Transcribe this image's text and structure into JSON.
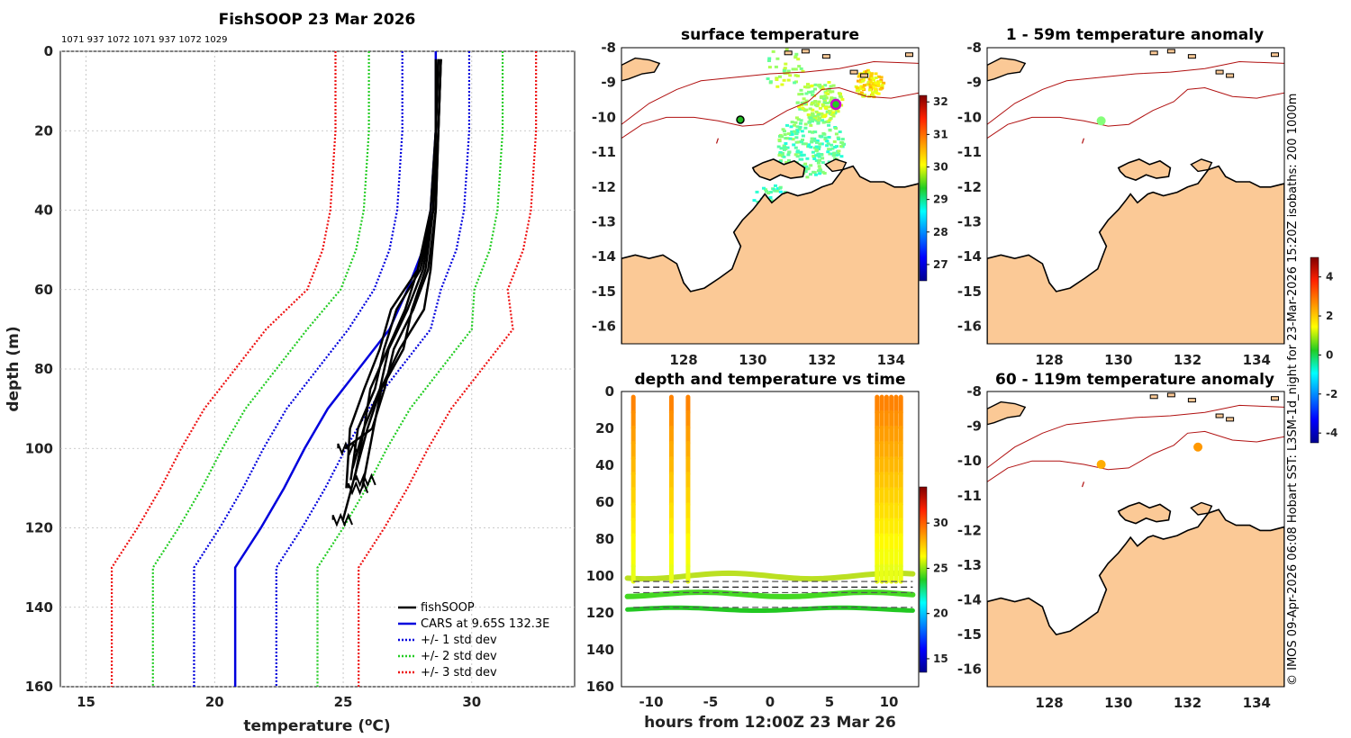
{
  "chart_data": [
    {
      "type": "line",
      "title": "FishSOOP 23 Mar 2026",
      "top_labels": "1071 937 1072 1071 937 1072 1029",
      "xlabel": "temperature (oC)",
      "ylabel": "depth (m)",
      "xlim": [
        14,
        34
      ],
      "ylim": [
        0,
        160
      ],
      "xticks": [
        15,
        20,
        25,
        30
      ],
      "yticks": [
        0,
        20,
        40,
        60,
        80,
        100,
        120,
        140,
        160
      ],
      "grid": true,
      "legend": [
        "fishSOOP",
        "CARS at 9.65S 132.3E",
        "+/- 1 std dev",
        "+/- 2 std dev",
        "+/- 3 std dev"
      ],
      "legend_position": "bottom-right",
      "cars_depth": [
        0,
        10,
        20,
        30,
        40,
        50,
        60,
        70,
        80,
        90,
        100,
        110,
        120,
        130,
        160
      ],
      "cars_mean": [
        28.6,
        28.6,
        28.6,
        28.5,
        28.4,
        28.1,
        27.5,
        26.8,
        25.6,
        24.4,
        23.5,
        22.7,
        21.8,
        20.8,
        20.8
      ],
      "cars_std": [
        1.3,
        1.3,
        1.3,
        1.3,
        1.3,
        1.3,
        1.3,
        1.6,
        1.6,
        1.6,
        1.6,
        1.6,
        1.6,
        1.6,
        1.6
      ],
      "fishsoop_casts": [
        {
          "depth": [
            2,
            20,
            40,
            55,
            65,
            75,
            85,
            95,
            100
          ],
          "temp": [
            28.8,
            28.7,
            28.6,
            28.3,
            27.6,
            27.1,
            26.6,
            26.0,
            25.2
          ]
        },
        {
          "depth": [
            2,
            20,
            40,
            55,
            65,
            75,
            85,
            95,
            105
          ],
          "temp": [
            28.7,
            28.6,
            28.5,
            28.1,
            27.5,
            26.9,
            26.3,
            25.8,
            25.5
          ]
        },
        {
          "depth": [
            2,
            20,
            40,
            55,
            65,
            75,
            85,
            95,
            108
          ],
          "temp": [
            28.7,
            28.6,
            28.5,
            28.0,
            27.2,
            26.6,
            26.1,
            25.7,
            25.3
          ]
        },
        {
          "depth": [
            2,
            20,
            40,
            55,
            65,
            75,
            85,
            95,
            110
          ],
          "temp": [
            28.6,
            28.6,
            28.4,
            27.9,
            27.0,
            26.3,
            25.8,
            25.4,
            25.0
          ]
        },
        {
          "depth": [
            2,
            20,
            40,
            55,
            65,
            75,
            85,
            95,
            110
          ],
          "temp": [
            28.8,
            28.7,
            28.5,
            28.2,
            27.7,
            27.2,
            26.6,
            26.2,
            25.6
          ]
        },
        {
          "depth": [
            2,
            20,
            40,
            55,
            65,
            75,
            85,
            95,
            108
          ],
          "temp": [
            28.7,
            28.6,
            28.5,
            27.9,
            27.3,
            26.7,
            26.2,
            25.7,
            25.4
          ]
        },
        {
          "depth": [
            2,
            20,
            40,
            55,
            65,
            75,
            85,
            95,
            118
          ],
          "temp": [
            28.8,
            28.7,
            28.6,
            28.4,
            28.0,
            27.3,
            26.5,
            25.8,
            25.1
          ]
        }
      ]
    },
    {
      "type": "heatmap",
      "title": "surface temperature",
      "xlim": [
        126.2,
        134.8
      ],
      "ylim": [
        -16.5,
        -8
      ],
      "xticks": [
        128,
        130,
        132,
        134
      ],
      "yticks": [
        -8,
        -9,
        -10,
        -11,
        -12,
        -13,
        -14,
        -15,
        -16
      ],
      "colorbar_ticks": [
        27,
        28,
        29,
        30,
        31,
        32
      ],
      "colorbar_range": [
        26.5,
        32.2
      ],
      "markers": [
        {
          "lon": 129.5,
          "lat": -10.1
        },
        {
          "lon": 132.3,
          "lat": -9.6
        }
      ]
    },
    {
      "type": "scatter",
      "title": "depth and temperature vs time",
      "xlabel": "hours from 12:00Z 23 Mar 26",
      "xlim": [
        -12.5,
        12.5
      ],
      "ylim": [
        0,
        160
      ],
      "xticks": [
        -10,
        -5,
        0,
        5,
        10
      ],
      "xtick_labels": [
        "-10",
        "-5",
        "0",
        "5",
        "10"
      ],
      "yticks": [
        0,
        20,
        40,
        60,
        80,
        100,
        120,
        140,
        160
      ],
      "colorbar_ticks": [
        15,
        20,
        25,
        30
      ],
      "colorbar_range": [
        13.5,
        34
      ],
      "casts_hours": [
        -11.5,
        -8.3,
        -6.9,
        9.0,
        9.4,
        9.8,
        10.2,
        10.6,
        11.0
      ],
      "seabed_depth_lines": [
        103,
        106,
        109,
        117
      ]
    },
    {
      "type": "heatmap",
      "title": "1 - 59m temperature anomaly",
      "xlim": [
        126.2,
        134.8
      ],
      "ylim": [
        -16.5,
        -8
      ],
      "xticks": [
        128,
        130,
        132,
        134
      ],
      "yticks": [
        -8,
        -9,
        -10,
        -11,
        -12,
        -13,
        -14,
        -15,
        -16
      ],
      "points": [
        {
          "lon": 129.5,
          "lat": -10.1,
          "anomaly": 0.3
        }
      ]
    },
    {
      "type": "heatmap",
      "title": "60 - 119m temperature anomaly",
      "xlim": [
        126.2,
        134.8
      ],
      "ylim": [
        -16.5,
        -8
      ],
      "xticks": [
        128,
        130,
        132,
        134
      ],
      "yticks": [
        -8,
        -9,
        -10,
        -11,
        -12,
        -13,
        -14,
        -15,
        -16
      ],
      "points": [
        {
          "lon": 129.5,
          "lat": -10.1,
          "anomaly": 2.2
        },
        {
          "lon": 132.3,
          "lat": -9.6,
          "anomaly": 2.4
        }
      ]
    }
  ],
  "anomaly_colorbar": {
    "ticks": [
      -4,
      -2,
      0,
      2,
      4
    ],
    "range": [
      -4.5,
      5
    ]
  },
  "credit": "© IMOS 09-Apr-2026 06:08 Hobart SST: L3SM-1d_night for 23-Mar-2026 15:20Z isobaths: 200  1000m",
  "colors": {
    "land": "#fbc996",
    "isobath": "#b01010",
    "fishsoop": "#000000",
    "cars": "#0000dd",
    "std1": "#0000dd",
    "std2": "#22cc22",
    "std3": "#ee1111"
  }
}
